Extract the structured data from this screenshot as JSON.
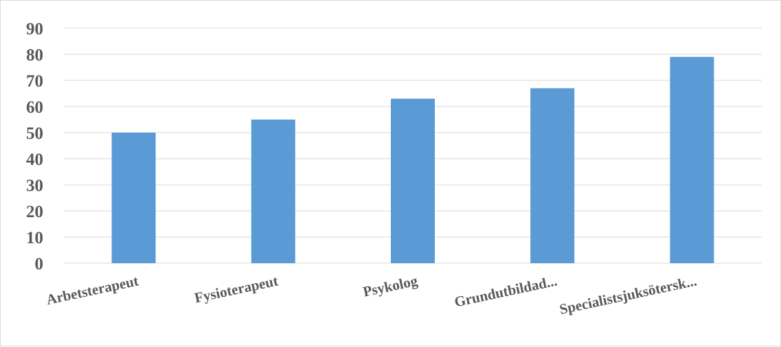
{
  "chart_data": {
    "type": "bar",
    "categories": [
      "Arbetsterapeut",
      "Fysioterapeut",
      "Psykolog",
      "Grundutbildad...",
      "Specialistsjuksötersk..."
    ],
    "values": [
      50,
      55,
      63,
      67,
      79
    ],
    "title": "",
    "xlabel": "",
    "ylabel": "",
    "ylim": [
      0,
      90
    ],
    "yticks": [
      "0",
      "10",
      "20",
      "30",
      "40",
      "50",
      "60",
      "70",
      "80",
      "90"
    ],
    "grid": true,
    "bar_color": "#5b9bd5",
    "grid_color": "#d9d9d9"
  }
}
